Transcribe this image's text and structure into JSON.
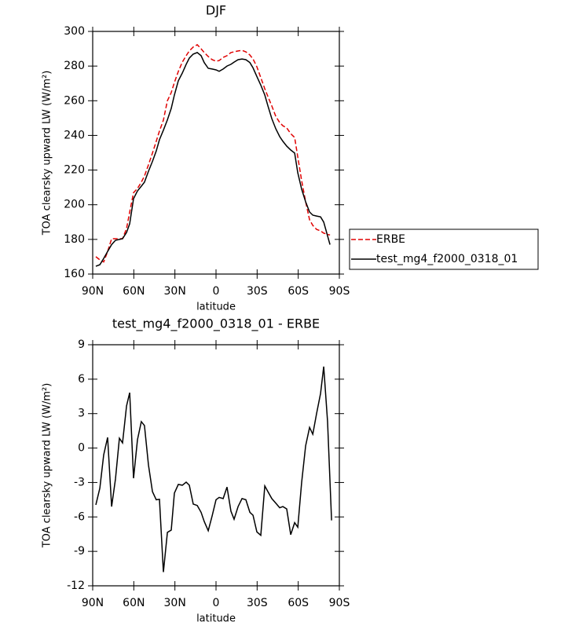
{
  "chart_data": [
    {
      "type": "line",
      "title": "DJF",
      "xlabel": "latitude",
      "ylabel": "TOA clearsky upward LW (W/m²)",
      "x": [
        87.7,
        84.8,
        82.0,
        79.1,
        76.2,
        73.4,
        70.5,
        68.2,
        65.3,
        63.0,
        60.2,
        57.3,
        54.5,
        52.2,
        49.3,
        46.4,
        43.6,
        41.3,
        38.4,
        35.5,
        32.7,
        30.4,
        27.5,
        24.6,
        21.8,
        19.5,
        16.6,
        13.7,
        10.9,
        8.6,
        5.7,
        2.8,
        0.0,
        -2.3,
        -5.2,
        -8.0,
        -10.9,
        -13.2,
        -16.1,
        -19.0,
        -21.8,
        -24.7,
        -27.0,
        -29.8,
        -32.7,
        -35.6,
        -37.9,
        -40.7,
        -43.6,
        -46.5,
        -48.8,
        -51.6,
        -54.5,
        -57.4,
        -59.7,
        -62.5,
        -65.4,
        -68.3,
        -70.6,
        -73.4,
        -76.3,
        -78.6,
        -83.2
      ],
      "series": [
        {
          "name": "ERBE",
          "color": "#e00000",
          "dashed": true,
          "values": [
            170,
            168.2,
            167,
            173,
            180.4,
            180.4,
            180.4,
            180.4,
            186.3,
            195.8,
            207,
            209.4,
            213,
            216.6,
            223,
            229.8,
            236.6,
            242.5,
            248.8,
            260,
            264.7,
            270.5,
            276.9,
            282.3,
            286,
            288.7,
            291,
            292.3,
            290,
            287.8,
            285.5,
            283.7,
            282.8,
            283.2,
            285,
            286,
            287.8,
            288.2,
            288.7,
            289.1,
            288.2,
            286.4,
            284.1,
            279.6,
            273.3,
            266.9,
            262.4,
            257,
            251,
            247.4,
            245.6,
            244.3,
            241,
            238.8,
            227.5,
            213.9,
            201.7,
            191.3,
            188.1,
            185.8,
            184.9,
            183.6,
            182.5
          ]
        },
        {
          "name": "test_mg4_f2000_0318_01",
          "color": "#000000",
          "dashed": false,
          "values": [
            164.5,
            165.4,
            169,
            173,
            177,
            179.5,
            180,
            180.4,
            184,
            189,
            203.5,
            208,
            210.7,
            213,
            219.3,
            225,
            231,
            237.5,
            243,
            249,
            255.6,
            263.3,
            271.5,
            276,
            281,
            284.6,
            286.9,
            287.8,
            286,
            282,
            278.7,
            278.3,
            277.8,
            277,
            278.3,
            280,
            281,
            282.3,
            283.7,
            284.1,
            283.7,
            282,
            279,
            274,
            269,
            263.3,
            257,
            249.7,
            243.8,
            239.3,
            236.6,
            233.8,
            231.6,
            229.8,
            218.4,
            209,
            201.7,
            195.8,
            194,
            193.5,
            193,
            190,
            177
          ]
        }
      ],
      "xlim": [
        90,
        -90
      ],
      "xticks": [
        {
          "value": 90,
          "label": "90N"
        },
        {
          "value": 60,
          "label": "60N"
        },
        {
          "value": 30,
          "label": "30N"
        },
        0,
        {
          "value": -30,
          "label": "30S"
        },
        {
          "value": -60,
          "label": "60S"
        },
        {
          "value": -90,
          "label": "90S"
        }
      ],
      "ylim": [
        160,
        300
      ],
      "yticks": [
        160,
        180,
        200,
        220,
        240,
        260,
        280,
        300
      ],
      "legend": "right"
    },
    {
      "type": "line",
      "title": "test_mg4_f2000_0318_01 - ERBE",
      "xlabel": "latitude",
      "ylabel": "TOA clearsky upward LW (W/m²)",
      "x": [
        87.7,
        84.8,
        82.0,
        79.1,
        76.2,
        73.4,
        70.5,
        68.2,
        65.3,
        63.0,
        60.2,
        57.3,
        54.5,
        52.2,
        49.3,
        46.4,
        43.6,
        41.3,
        38.4,
        35.5,
        32.7,
        30.4,
        27.5,
        24.6,
        21.8,
        19.5,
        16.6,
        13.7,
        10.9,
        8.6,
        5.7,
        2.8,
        0.0,
        -2.3,
        -5.2,
        -8.0,
        -10.9,
        -13.2,
        -16.1,
        -19.0,
        -21.8,
        -24.7,
        -27.0,
        -29.8,
        -32.7,
        -35.6,
        -37.9,
        -40.7,
        -43.6,
        -46.5,
        -48.8,
        -51.6,
        -54.5,
        -57.4,
        -59.7,
        -62.5,
        -65.4,
        -68.3,
        -70.6,
        -73.4,
        -76.3,
        -78.6,
        -81.4,
        -84.3
      ],
      "color": "#000000",
      "values": [
        -4.95,
        -3.5,
        -0.6,
        0.93,
        -5.1,
        -2.7,
        0.86,
        0.45,
        3.67,
        4.83,
        -2.63,
        0.72,
        2.3,
        1.96,
        -1.47,
        -3.8,
        -4.5,
        -4.47,
        -10.8,
        -7.35,
        -7.14,
        -3.93,
        -3.17,
        -3.24,
        -2.97,
        -3.24,
        -4.88,
        -5.0,
        -5.6,
        -6.4,
        -7.2,
        -5.9,
        -4.5,
        -4.3,
        -4.4,
        -3.4,
        -5.5,
        -6.2,
        -5.1,
        -4.4,
        -4.5,
        -5.6,
        -5.85,
        -7.3,
        -7.6,
        -3.3,
        -3.8,
        -4.4,
        -4.8,
        -5.2,
        -5.1,
        -5.3,
        -7.55,
        -6.5,
        -6.9,
        -3.0,
        0.2,
        1.8,
        1.2,
        3.0,
        4.76,
        7.1,
        2.3,
        -6.3
      ],
      "xlim": [
        90,
        -90
      ],
      "xticks": [
        {
          "value": 90,
          "label": "90N"
        },
        {
          "value": 60,
          "label": "60N"
        },
        {
          "value": 30,
          "label": "30N"
        },
        0,
        {
          "value": -30,
          "label": "30S"
        },
        {
          "value": -60,
          "label": "60S"
        },
        {
          "value": -90,
          "label": "90S"
        }
      ],
      "ylim": [
        -12,
        9
      ],
      "yticks": [
        -12,
        -9,
        -6,
        -3,
        0,
        3,
        6,
        9
      ]
    }
  ]
}
